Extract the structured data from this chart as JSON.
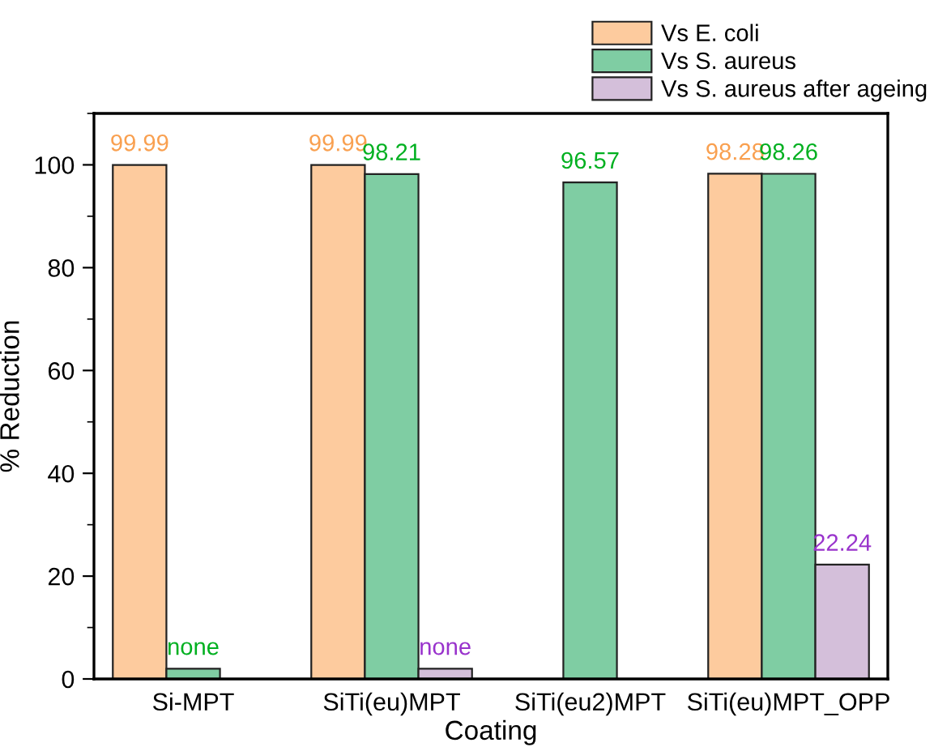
{
  "chart_data": {
    "type": "bar",
    "xlabel": "Coating",
    "ylabel": "% Reduction",
    "categories": [
      "Si-MPT",
      "SiTi(eu)MPT",
      "SiTi(eu2)MPT",
      "SiTi(eu)MPT_OPP"
    ],
    "series": [
      {
        "name": "Vs E. coli",
        "color": "#fdcb9e",
        "values": [
          99.99,
          99.99,
          null,
          98.28
        ],
        "value_labels": [
          "99.99",
          "99.99",
          null,
          "98.28"
        ]
      },
      {
        "name": "Vs S. aureus",
        "color": "#7fcda3",
        "values": [
          2,
          98.21,
          96.57,
          98.26
        ],
        "value_labels": [
          "none",
          "98.21",
          "96.57",
          "98.26"
        ]
      },
      {
        "name": "Vs S. aureus after ageing",
        "color": "#d4bfda",
        "values": [
          null,
          2,
          null,
          22.24
        ],
        "value_labels": [
          null,
          "none",
          null,
          "22.24"
        ]
      }
    ],
    "ylim": [
      0,
      110
    ],
    "yticks": [
      0,
      20,
      40,
      60,
      80,
      100
    ],
    "grid": false,
    "legend": "top right"
  }
}
